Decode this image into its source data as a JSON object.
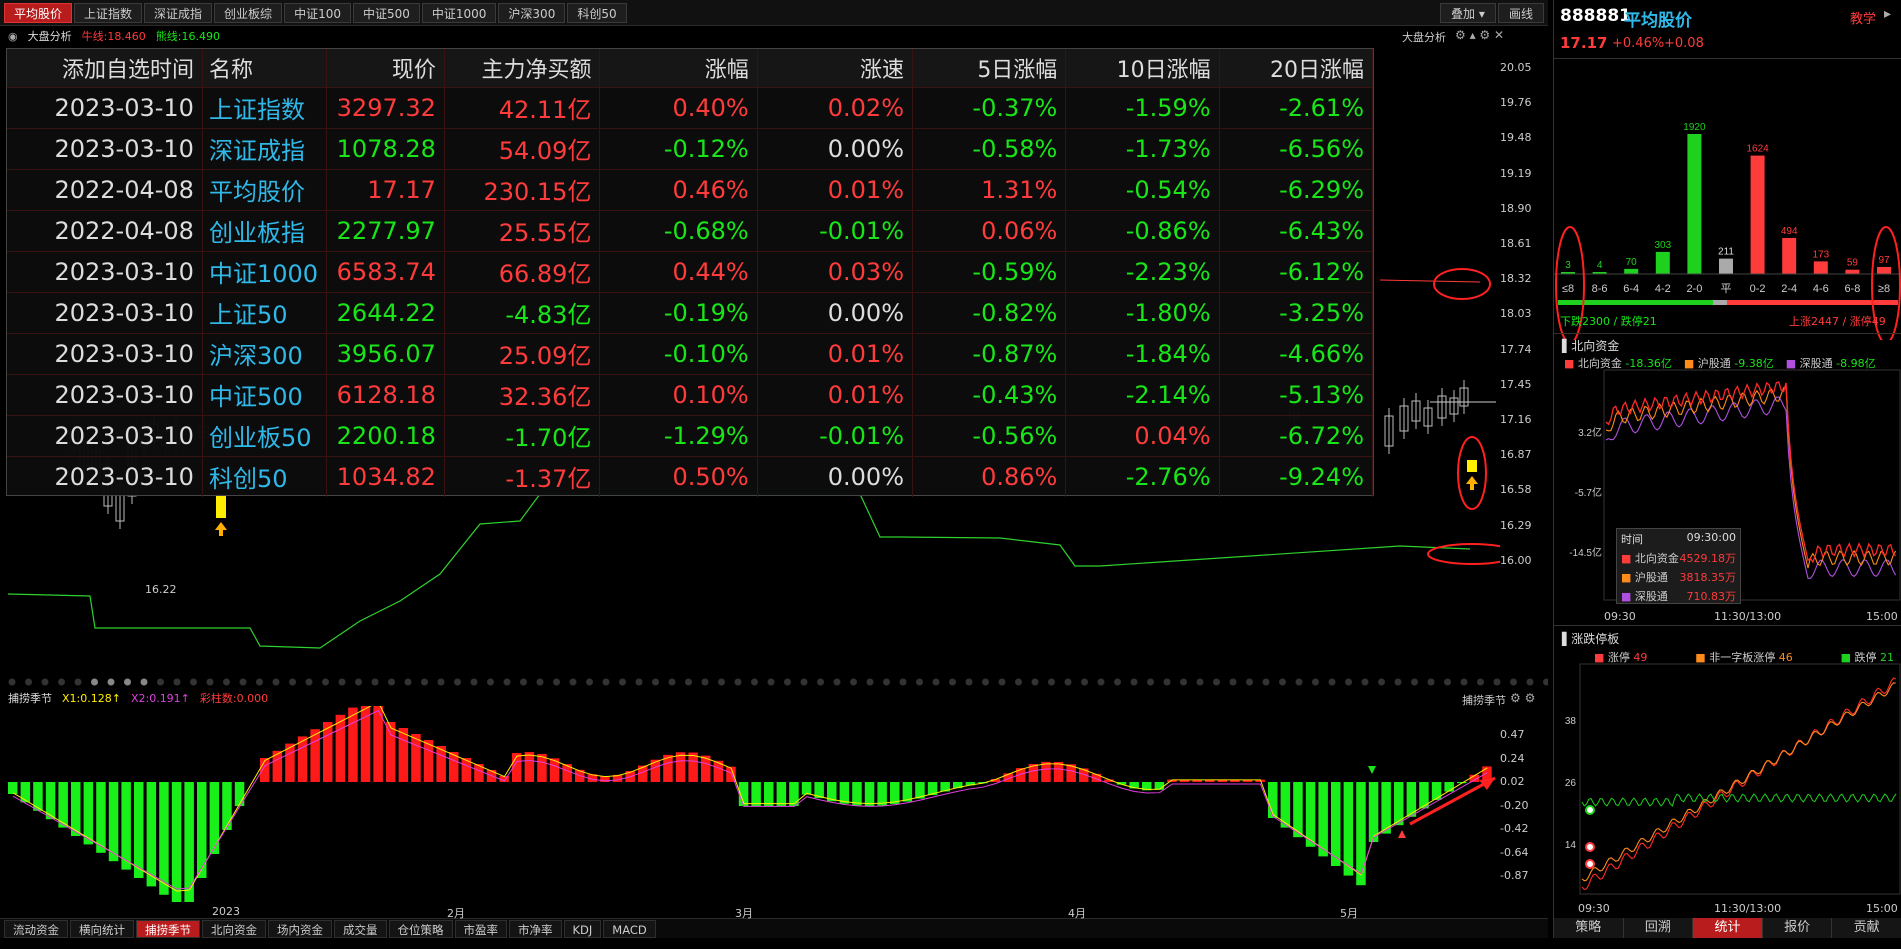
{
  "top_tabs": [
    {
      "label": "平均股价",
      "active": true
    },
    {
      "label": "上证指数"
    },
    {
      "label": "深证成指"
    },
    {
      "label": "创业板综"
    },
    {
      "label": "中证100"
    },
    {
      "label": "中证500"
    },
    {
      "label": "中证1000"
    },
    {
      "label": "沪深300"
    },
    {
      "label": "科创50"
    }
  ],
  "toolbar": {
    "overlay_label": "叠加 ▾",
    "draw_label": "画线"
  },
  "chart_header": {
    "title": "大盘分析",
    "bull_line": "牛线:18.460",
    "bear_line": "熊线:16.490",
    "right_label": "大盘分析"
  },
  "price_axis": [
    "20.05",
    "19.76",
    "19.48",
    "19.19",
    "18.90",
    "18.61",
    "18.32",
    "18.03",
    "17.74",
    "17.45",
    "17.16",
    "16.87",
    "16.58",
    "16.29",
    "16.00"
  ],
  "low_label": "16.22",
  "grid": {
    "headers": [
      "添加自选时间",
      "名称",
      "现价",
      "主力净买额",
      "涨幅",
      "涨速",
      "5日涨幅",
      "10日涨幅",
      "20日涨幅"
    ],
    "rows": [
      [
        "2023-03-10",
        "上证指数",
        "3297.32",
        "42.11亿",
        "0.40%",
        "0.02%",
        "-0.37%",
        "-1.59%",
        "-2.61%"
      ],
      [
        "2023-03-10",
        "深证成指",
        "1078.28",
        "54.09亿",
        "-0.12%",
        "0.00%",
        "-0.58%",
        "-1.73%",
        "-6.56%"
      ],
      [
        "2022-04-08",
        "平均股价",
        "17.17",
        "230.15亿",
        "0.46%",
        "0.01%",
        "1.31%",
        "-0.54%",
        "-6.29%"
      ],
      [
        "2022-04-08",
        "创业板指",
        "2277.97",
        "25.55亿",
        "-0.68%",
        "-0.01%",
        "0.06%",
        "-0.86%",
        "-6.43%"
      ],
      [
        "2023-03-10",
        "中证1000",
        "6583.74",
        "66.89亿",
        "0.44%",
        "0.03%",
        "-0.59%",
        "-2.23%",
        "-6.12%"
      ],
      [
        "2023-03-10",
        "上证50",
        "2644.22",
        "-4.83亿",
        "-0.19%",
        "0.00%",
        "-0.82%",
        "-1.80%",
        "-3.25%"
      ],
      [
        "2023-03-10",
        "沪深300",
        "3956.07",
        "25.09亿",
        "-0.10%",
        "0.01%",
        "-0.87%",
        "-1.84%",
        "-4.66%"
      ],
      [
        "2023-03-10",
        "中证500",
        "6128.18",
        "32.36亿",
        "0.10%",
        "0.01%",
        "-0.43%",
        "-2.14%",
        "-5.13%"
      ],
      [
        "2023-03-10",
        "创业板50",
        "2200.18",
        "-1.70亿",
        "-1.29%",
        "-0.01%",
        "-0.56%",
        "0.04%",
        "-6.72%"
      ],
      [
        "2023-03-10",
        "科创50",
        "1034.82",
        "-1.37亿",
        "0.50%",
        "0.00%",
        "0.86%",
        "-2.76%",
        "-9.24%"
      ]
    ],
    "colors": [
      [
        "w",
        "n",
        "r",
        "r",
        "r",
        "r",
        "g",
        "g",
        "g"
      ],
      [
        "w",
        "n",
        "g",
        "r",
        "g",
        "w",
        "g",
        "g",
        "g"
      ],
      [
        "w",
        "n",
        "r",
        "r",
        "r",
        "r",
        "r",
        "g",
        "g"
      ],
      [
        "w",
        "n",
        "g",
        "r",
        "g",
        "g",
        "r",
        "g",
        "g"
      ],
      [
        "w",
        "n",
        "r",
        "r",
        "r",
        "r",
        "g",
        "g",
        "g"
      ],
      [
        "w",
        "n",
        "g",
        "g",
        "g",
        "w",
        "g",
        "g",
        "g"
      ],
      [
        "w",
        "n",
        "g",
        "r",
        "g",
        "r",
        "g",
        "g",
        "g"
      ],
      [
        "w",
        "n",
        "r",
        "r",
        "r",
        "r",
        "g",
        "g",
        "g"
      ],
      [
        "w",
        "n",
        "g",
        "g",
        "g",
        "g",
        "g",
        "r",
        "g"
      ],
      [
        "w",
        "n",
        "r",
        "r",
        "r",
        "w",
        "r",
        "g",
        "g"
      ]
    ]
  },
  "sub_header": {
    "title": "捕捞季节",
    "x1": "X1:0.128↑",
    "x2": "X2:0.191↑",
    "bars": "彩柱数:0.000",
    "right_label": "捕捞季节"
  },
  "sub_axis": [
    "0.47",
    "0.24",
    "0.02",
    "-0.20",
    "-0.42",
    "-0.64",
    "-0.87"
  ],
  "months": [
    "2023",
    "2月",
    "3月",
    "4月",
    "5月"
  ],
  "bottom_tabs": [
    {
      "label": "流动资金"
    },
    {
      "label": "横向统计"
    },
    {
      "label": "捕捞季节",
      "active": true
    },
    {
      "label": "北向资金"
    },
    {
      "label": "场内资金"
    },
    {
      "label": "成交量"
    },
    {
      "label": "仓位策略"
    },
    {
      "label": "市盈率"
    },
    {
      "label": "市净率"
    },
    {
      "label": "KDJ"
    },
    {
      "label": "MACD"
    }
  ],
  "right": {
    "code": "888881",
    "name": "平均股价",
    "teach": "教学",
    "price": "17.17",
    "pct": "+0.46%",
    "chg": "+0.08",
    "dist": {
      "labels": [
        "≤8",
        "8-6",
        "6-4",
        "4-2",
        "2-0",
        "平",
        "0-2",
        "2-4",
        "4-6",
        "6-8",
        "≥8"
      ],
      "values": [
        3,
        4,
        70,
        303,
        1920,
        211,
        1624,
        494,
        173,
        59,
        97
      ],
      "colors": [
        "#1fd11f",
        "#1fd11f",
        "#1fd11f",
        "#1fd11f",
        "#1fd11f",
        "#aaaaaa",
        "#ff3b3b",
        "#ff3b3b",
        "#ff3b3b",
        "#ff3b3b",
        "#ff3b3b"
      ]
    },
    "down_text": "下跌2300 / 跌停21",
    "up_text": "上涨2447 / 涨停49",
    "north": {
      "title": "北向资金",
      "legend": [
        {
          "name": "北向资金",
          "val": "-18.36亿",
          "color": "#ff3b3b"
        },
        {
          "name": "沪股通",
          "val": "-9.38亿",
          "color": "#ff8c1a"
        },
        {
          "name": "深股通",
          "val": "-8.98亿",
          "color": "#b050e0"
        }
      ],
      "axis": [
        "3.2亿",
        "-5.7亿",
        "-14.5亿"
      ],
      "tooltip": {
        "time_label": "时间",
        "time": "09:30:00",
        "rows": [
          {
            "name": "北向资金",
            "val": "4529.18万",
            "color": "#ff3b3b"
          },
          {
            "name": "沪股通",
            "val": "3818.35万",
            "color": "#ff8c1a"
          },
          {
            "name": "深股通",
            "val": "710.83万",
            "color": "#b050e0"
          }
        ]
      },
      "times": [
        "09:30",
        "11:30/13:00",
        "15:00"
      ]
    },
    "limit": {
      "title": "涨跌停板",
      "legend": [
        {
          "name": "涨停",
          "val": "49",
          "color": "#ff3b3b"
        },
        {
          "name": "非一字板涨停",
          "val": "46",
          "color": "#ff8c1a"
        },
        {
          "name": "跌停",
          "val": "21",
          "color": "#1fd11f"
        }
      ],
      "axis": [
        "38",
        "26",
        "14"
      ],
      "times": [
        "09:30",
        "11:30/13:00",
        "15:00"
      ]
    },
    "tabs": [
      {
        "label": "策略"
      },
      {
        "label": "回溯"
      },
      {
        "label": "统计",
        "active": true
      },
      {
        "label": "报价"
      },
      {
        "label": "贡献"
      }
    ]
  }
}
